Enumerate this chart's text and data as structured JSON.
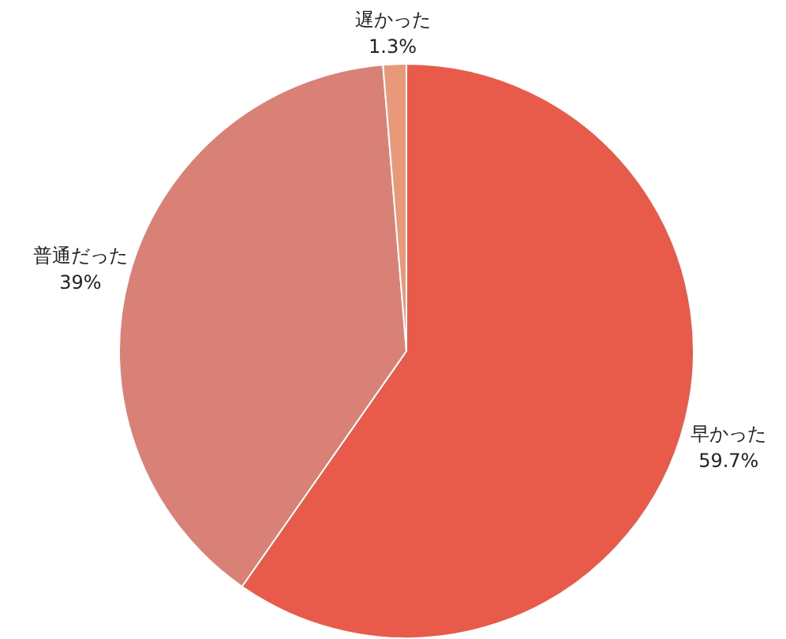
{
  "chart_data": {
    "type": "pie",
    "categories": [
      "早かった",
      "普通だった",
      "遅かった"
    ],
    "values": [
      59.7,
      39,
      1.3
    ],
    "value_labels": [
      "59.7%",
      "39%",
      "1.3%"
    ],
    "colors": [
      "#e85b4b",
      "#d98077",
      "#e9997a"
    ]
  }
}
